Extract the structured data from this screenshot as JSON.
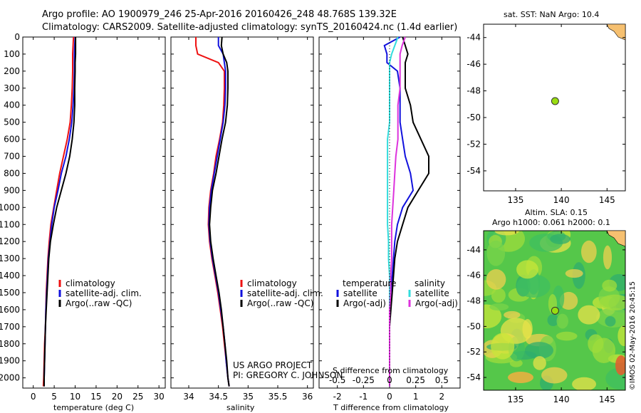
{
  "header": {
    "title_line1": "Argo profile: AO 1900979_246 25-Apr-2016 20160426_248 48.768S 139.32E",
    "title_line2": "Climatology: CARS2009. Satellite-adjusted climatology: synTS_20160424.nc (1.4d earlier)"
  },
  "depth_axis": {
    "ticks": [
      0,
      100,
      200,
      300,
      400,
      500,
      600,
      700,
      800,
      900,
      1000,
      1100,
      1200,
      1300,
      1400,
      1500,
      1600,
      1700,
      1800,
      1900,
      2000
    ],
    "range": [
      0,
      2060
    ],
    "inverted": true
  },
  "colors": {
    "climatology": "#ee1111",
    "satellite": "#1111dd",
    "argo": "#000000",
    "salinity_satellite": "#33dddd",
    "salinity_argo": "#dd33dd",
    "float_marker": "#99dd11"
  },
  "chart_data": [
    {
      "type": "line",
      "panel": "temperature",
      "xlabel": "temperature (deg C)",
      "xlim": [
        -2.5,
        31.5
      ],
      "xticks": [
        0,
        5,
        10,
        15,
        20,
        25,
        30
      ],
      "legend": [
        "climatology",
        "satellite-adj. clim.",
        "Argo(..raw -QC)"
      ],
      "legend_placement": "bottom-center",
      "depth": [
        0,
        50,
        100,
        150,
        200,
        300,
        400,
        500,
        600,
        700,
        800,
        900,
        1000,
        1100,
        1200,
        1300,
        1400,
        1500,
        1600,
        1700,
        1800,
        1900,
        2000,
        2050
      ],
      "series": [
        {
          "name": "climatology",
          "values": [
            9.6,
            9.5,
            9.4,
            9.4,
            9.4,
            9.3,
            9.1,
            8.8,
            8.1,
            7.2,
            6.3,
            5.6,
            4.9,
            4.2,
            3.8,
            3.5,
            3.3,
            3.1,
            3.0,
            2.9,
            2.7,
            2.6,
            2.5,
            2.4
          ]
        },
        {
          "name": "satellite-adj. clim.",
          "values": [
            10.0,
            9.9,
            9.8,
            9.8,
            9.8,
            9.7,
            9.5,
            9.2,
            8.6,
            7.8,
            6.7,
            5.9,
            5.0,
            4.4,
            4.0,
            3.6,
            3.4,
            3.2,
            3.0,
            2.9,
            2.8,
            2.7,
            2.6,
            2.6
          ]
        },
        {
          "name": "Argo(..raw -QC)",
          "values": [
            10.1,
            10.1,
            10.1,
            10.0,
            10.0,
            9.9,
            9.9,
            9.7,
            9.3,
            8.7,
            7.8,
            6.7,
            5.6,
            4.8,
            4.1,
            3.7,
            3.5,
            3.3,
            3.1,
            2.9,
            2.8,
            2.7,
            2.6,
            2.6
          ]
        }
      ]
    },
    {
      "type": "line",
      "panel": "salinity",
      "xlabel": "salinity",
      "xlim": [
        33.7,
        36.1
      ],
      "xticks": [
        34,
        34.5,
        35,
        35.5,
        36
      ],
      "legend": [
        "climatology",
        "satellite-adj. clim.",
        "Argo(..raw -QC)"
      ],
      "legend_placement": "bottom-center",
      "annotation": [
        "US ARGO PROJECT",
        "PI: GREGORY C. JOHNSON"
      ],
      "depth": [
        0,
        50,
        100,
        150,
        200,
        300,
        400,
        500,
        600,
        700,
        800,
        900,
        1000,
        1100,
        1200,
        1300,
        1400,
        1500,
        1600,
        1700,
        1800,
        1900,
        2000,
        2050
      ],
      "series": [
        {
          "name": "climatology",
          "values": [
            34.12,
            34.12,
            34.15,
            34.5,
            34.6,
            34.6,
            34.59,
            34.57,
            34.52,
            34.46,
            34.42,
            34.37,
            34.34,
            34.33,
            34.35,
            34.39,
            34.44,
            34.49,
            34.53,
            34.57,
            34.6,
            34.63,
            34.66,
            34.68
          ]
        },
        {
          "name": "satellite-adj. clim.",
          "values": [
            34.5,
            34.5,
            34.58,
            34.6,
            34.62,
            34.62,
            34.61,
            34.58,
            34.53,
            34.48,
            34.43,
            34.38,
            34.35,
            34.34,
            34.36,
            34.4,
            34.45,
            34.5,
            34.54,
            34.58,
            34.61,
            34.63,
            34.66,
            34.68
          ]
        },
        {
          "name": "Argo(..raw -QC)",
          "values": [
            34.56,
            34.55,
            34.58,
            34.64,
            34.66,
            34.66,
            34.65,
            34.62,
            34.56,
            34.51,
            34.46,
            34.4,
            34.37,
            34.35,
            34.37,
            34.41,
            34.46,
            34.51,
            34.55,
            34.58,
            34.61,
            34.64,
            34.66,
            34.68
          ]
        }
      ]
    },
    {
      "type": "line",
      "panel": "difference",
      "xlabel": "T difference from climatology",
      "xlabel_top": "S difference from climatology",
      "xlim": [
        -2.7,
        2.7
      ],
      "xticks": [
        -2,
        -1,
        0,
        1,
        2
      ],
      "s_ticks": [
        -0.5,
        -0.25,
        0,
        0.25,
        0.5
      ],
      "legend_headers": [
        "temperature",
        "salinity"
      ],
      "legend": [
        "satellite",
        "Argo(-adj)",
        "satellite",
        "Argo(-adj)"
      ],
      "legend_placement": "bottom-center",
      "depth": [
        0,
        50,
        100,
        150,
        200,
        300,
        400,
        500,
        600,
        700,
        800,
        900,
        1000,
        1100,
        1200,
        1300,
        1400,
        1500,
        1600,
        1700,
        1800,
        1900,
        2000,
        2050
      ],
      "series": [
        {
          "name": "satellite",
          "group": "temperature",
          "values": [
            0.4,
            -0.2,
            -0.1,
            -0.1,
            0.3,
            0.4,
            0.4,
            0.4,
            0.5,
            0.6,
            0.8,
            0.9,
            0.5,
            0.3,
            0.2,
            0.15,
            0.1,
            0.05,
            0.0,
            0.0,
            0.0,
            0.0,
            0.0,
            0.0
          ]
        },
        {
          "name": "Argo(-adj)",
          "group": "temperature",
          "values": [
            0.5,
            0.6,
            0.7,
            0.6,
            0.6,
            0.6,
            0.8,
            0.9,
            1.2,
            1.5,
            1.5,
            1.1,
            0.7,
            0.5,
            0.3,
            0.2,
            0.15,
            0.1,
            0.05,
            0.0,
            0.0,
            0.0,
            0.0,
            0.0
          ]
        },
        {
          "name": "satellite",
          "group": "salinity",
          "values": [
            0.08,
            0.05,
            0.02,
            0.0,
            0.0,
            0.0,
            0.0,
            0.0,
            -0.02,
            -0.02,
            -0.02,
            -0.02,
            -0.02,
            -0.02,
            -0.01,
            -0.01,
            0.0,
            0.0,
            0.0,
            0.0,
            0.0,
            0.0,
            0.0,
            0.0
          ]
        },
        {
          "name": "Argo(-adj)",
          "group": "salinity",
          "values": [
            0.15,
            0.12,
            0.1,
            0.1,
            0.1,
            0.1,
            0.08,
            0.08,
            0.08,
            0.06,
            0.05,
            0.04,
            0.03,
            0.02,
            0.02,
            0.02,
            0.01,
            0.01,
            0.0,
            0.0,
            0.0,
            0.0,
            0.0,
            0.0
          ]
        }
      ]
    },
    {
      "type": "scatter",
      "panel": "sst-map",
      "title": "sat. SST: NaN Argo: 10.4",
      "xlim": [
        131.5,
        147
      ],
      "ylim": [
        -55.5,
        -43
      ],
      "xticks": [
        135,
        140,
        145
      ],
      "yticks": [
        -44,
        -46,
        -48,
        -50,
        -52,
        -54
      ],
      "points": [
        {
          "x": 139.32,
          "y": -48.768
        }
      ]
    },
    {
      "type": "heatmap",
      "panel": "sla-map",
      "title_line1": "Altim. SLA: 0.15",
      "title_line2": "Argo h1000: 0.061 h2000: 0.1",
      "xlim": [
        131.5,
        147
      ],
      "ylim": [
        -55,
        -42.5
      ],
      "xticks": [
        135,
        140,
        145
      ],
      "yticks": [
        -44,
        -46,
        -48,
        -50,
        -52,
        -54
      ],
      "points": [
        {
          "x": 139.32,
          "y": -48.768
        }
      ]
    }
  ],
  "footer": {
    "credit": "©IMOS 02-May-2016 20:45:15"
  }
}
